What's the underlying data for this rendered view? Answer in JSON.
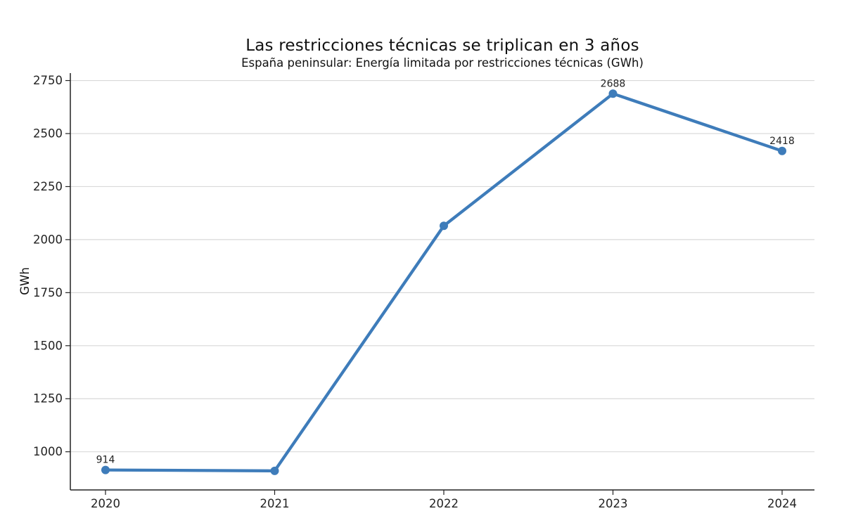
{
  "header": {
    "title": "Las restricciones técnicas se triplican en 3 años",
    "subtitle": "España peninsular: Energía limitada por restricciones técnicas (GWh)"
  },
  "chart_data": {
    "type": "line",
    "title": "Las restricciones técnicas se triplican en 3 años",
    "subtitle": "España peninsular: Energía limitada por restricciones técnicas (GWh)",
    "categories": [
      "2020",
      "2021",
      "2022",
      "2023",
      "2024"
    ],
    "series": [
      {
        "name": "Energía limitada por restricciones técnicas (GWh)",
        "values": [
          914,
          910,
          2065,
          2688,
          2418
        ]
      }
    ],
    "point_labels": [
      "914",
      "",
      "",
      "2688",
      "2418"
    ],
    "xlabel": "",
    "ylabel": "GWh",
    "ylim": [
      820,
      2785
    ],
    "yticks": [
      1000,
      1250,
      1500,
      1750,
      2000,
      2250,
      2500,
      2750
    ],
    "grid": "horizontal-only",
    "legend": "none",
    "marker": "circle",
    "colors": {
      "line": "#3e7cba",
      "marker": "#3e7cba",
      "grid": "#d9d9d9",
      "axis": "#222222",
      "tick_text": "#222222",
      "title_text": "#111111",
      "point_label_text": "#1a1a1a"
    }
  }
}
